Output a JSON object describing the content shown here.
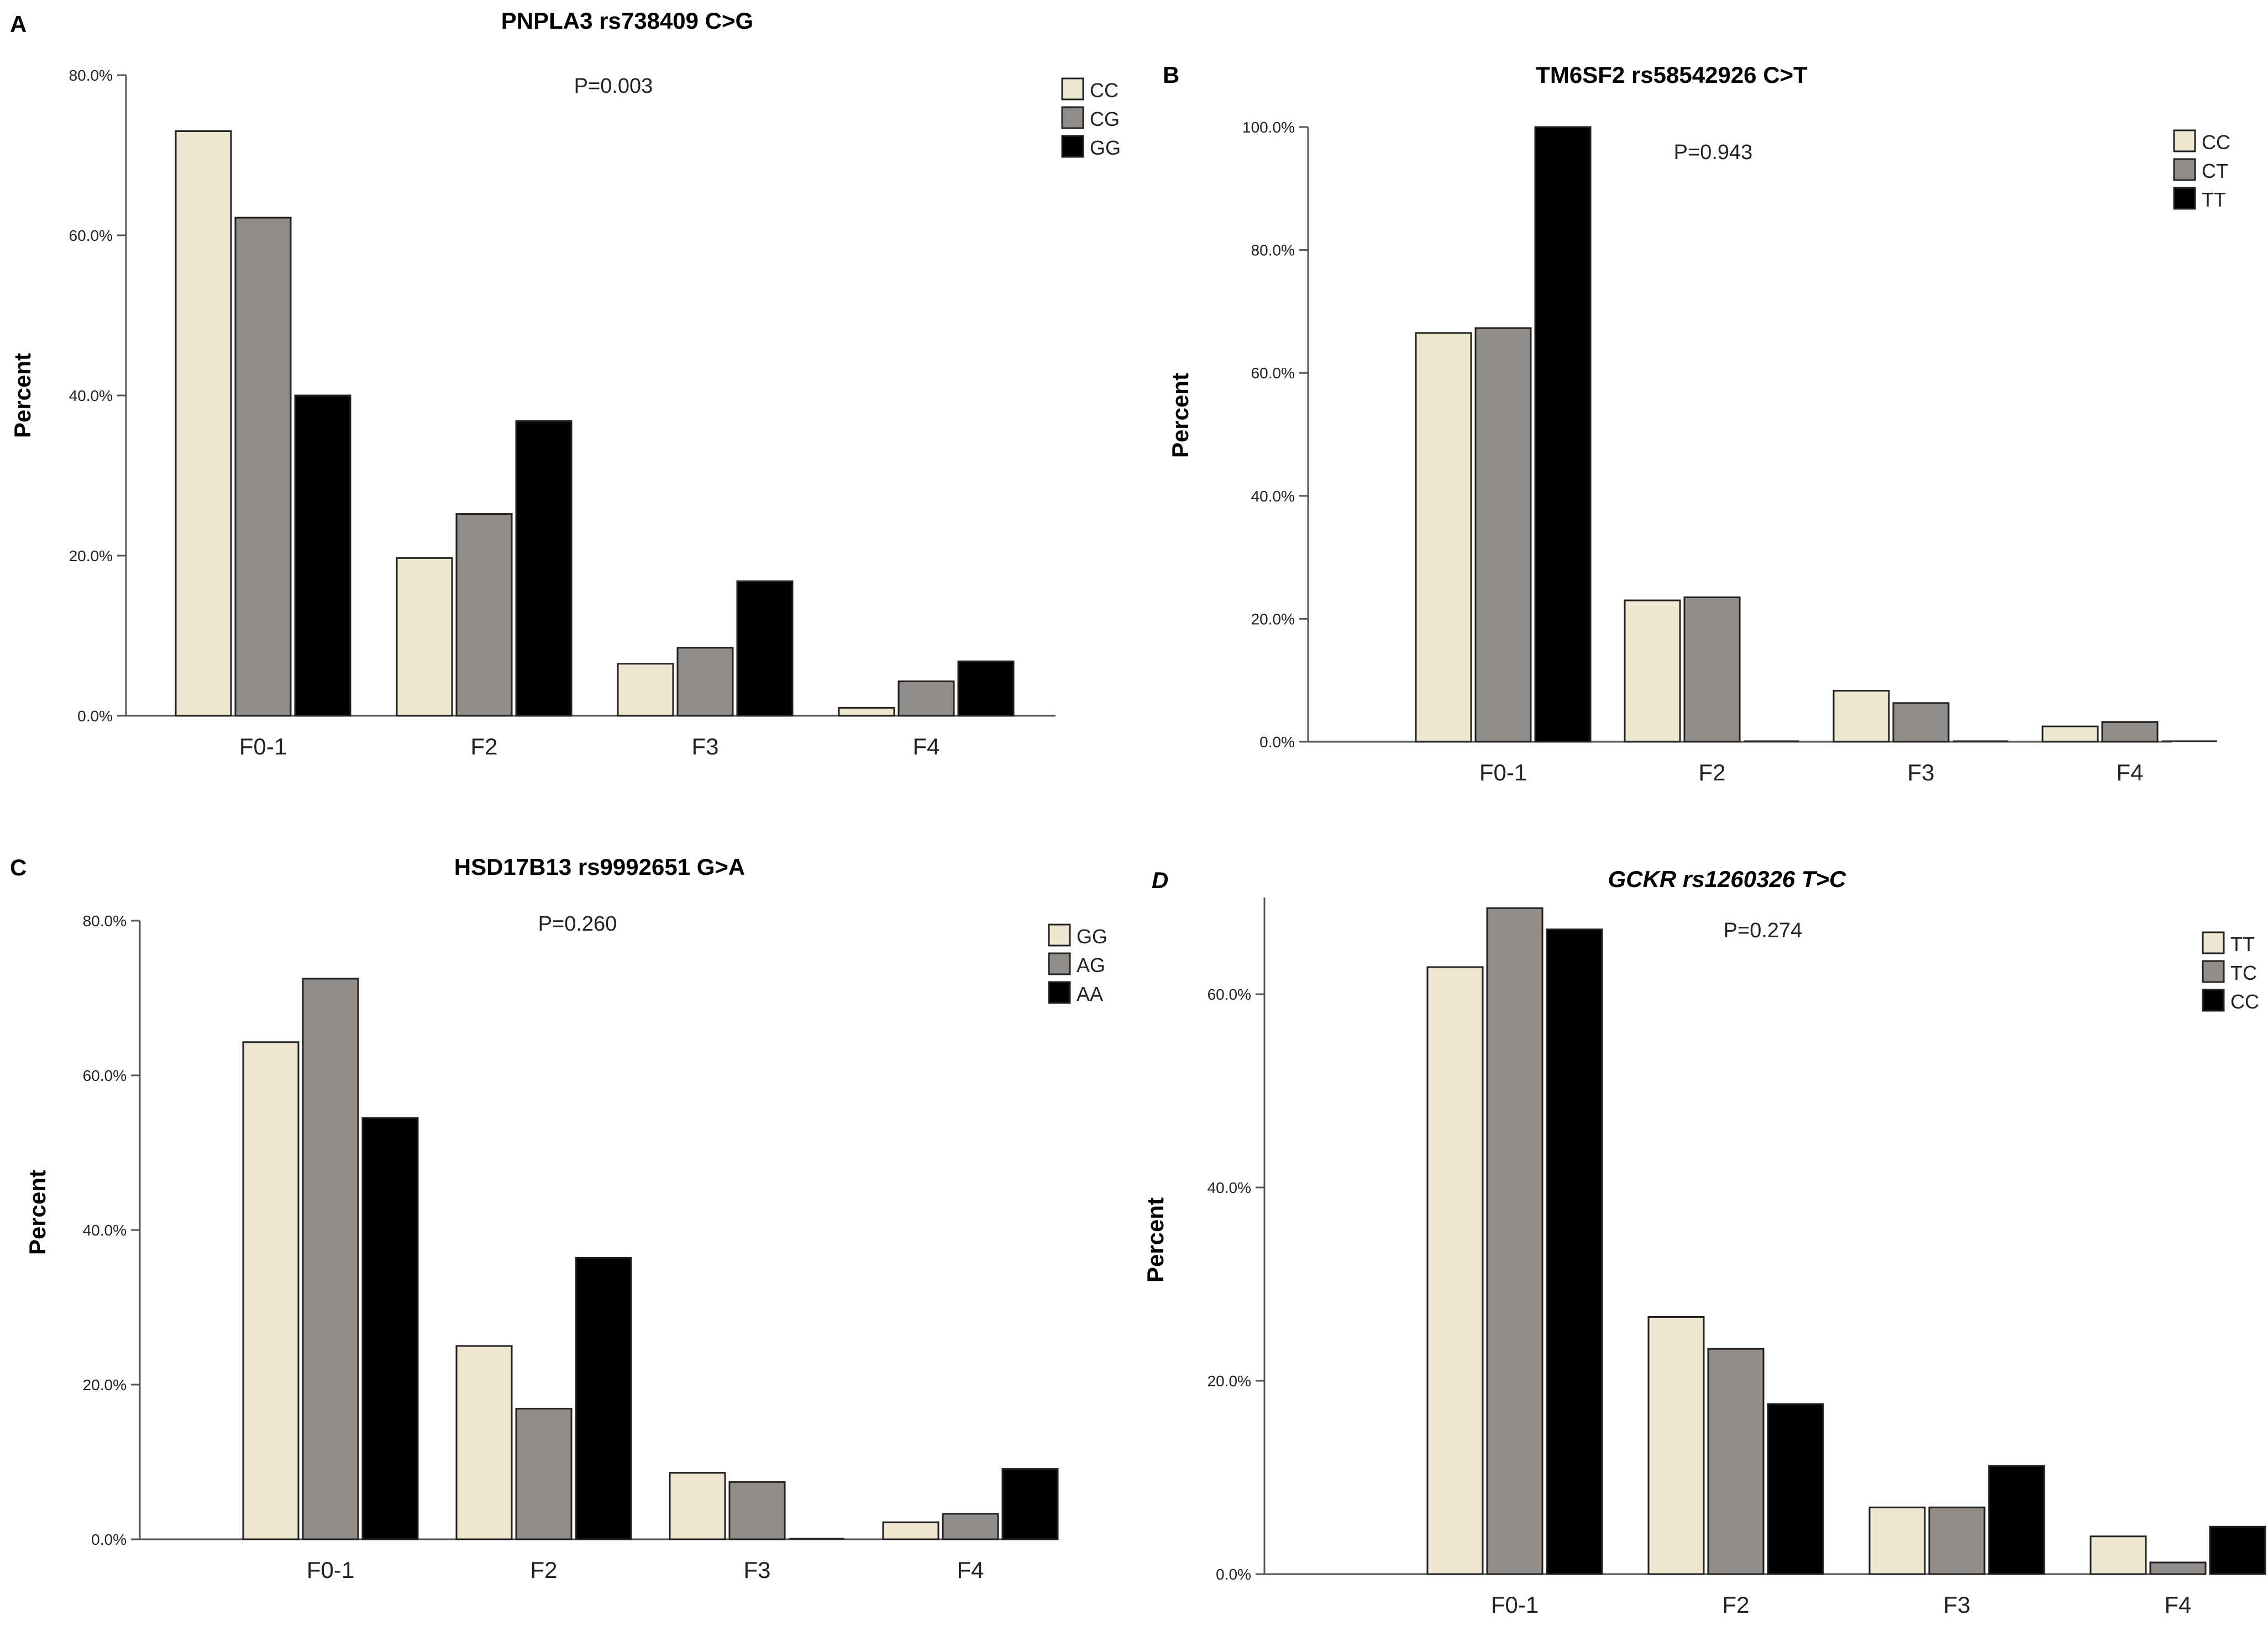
{
  "colors": {
    "light": "#efe6d2",
    "mid": "#938d89",
    "dark": "#000000",
    "axis": "#555555",
    "text": "#222222"
  },
  "chart_data": [
    {
      "panel": "A",
      "type": "bar",
      "title": "PNPLA3 rs738409 C>G",
      "title_italic": false,
      "annotation": "P=0.003",
      "xlabel": "",
      "ylabel": "Percent",
      "categories": [
        "F0-1",
        "F2",
        "F3",
        "F4"
      ],
      "ylim": [
        0,
        80
      ],
      "yticks": [
        0,
        20,
        40,
        60,
        80
      ],
      "ytick_labels": [
        "0.0%",
        "20.0%",
        "40.0%",
        "60.0%",
        "80.0%"
      ],
      "legend_position": "top-right",
      "series": [
        {
          "name": "CC",
          "color_key": "light",
          "values": [
            73.0,
            19.7,
            6.5,
            1.0
          ]
        },
        {
          "name": "CG",
          "color_key": "mid",
          "values": [
            62.2,
            25.2,
            8.5,
            4.3
          ]
        },
        {
          "name": "GG",
          "color_key": "dark",
          "values": [
            40.0,
            36.8,
            16.8,
            6.8
          ]
        }
      ]
    },
    {
      "panel": "B",
      "type": "bar",
      "title": "TM6SF2 rs58542926 C>T",
      "title_italic": false,
      "annotation": "P=0.943",
      "xlabel": "",
      "ylabel": "Percent",
      "categories": [
        "F0-1",
        "F2",
        "F3",
        "F4"
      ],
      "ylim": [
        0,
        100
      ],
      "yticks": [
        0,
        20,
        40,
        60,
        80,
        100
      ],
      "ytick_labels": [
        "0.0%",
        "20.0%",
        "40.0%",
        "60.0%",
        "80.0%",
        "100.0%"
      ],
      "legend_position": "top-right",
      "series": [
        {
          "name": "CC",
          "color_key": "light",
          "values": [
            66.5,
            23.0,
            8.3,
            2.5
          ]
        },
        {
          "name": "CT",
          "color_key": "mid",
          "values": [
            67.3,
            23.5,
            6.3,
            3.2
          ]
        },
        {
          "name": "TT",
          "color_key": "dark",
          "values": [
            100.0,
            0,
            0,
            0
          ]
        }
      ]
    },
    {
      "panel": "C",
      "type": "bar",
      "title": "HSD17B13 rs9992651 G>A",
      "title_italic": false,
      "annotation": "P=0.260",
      "xlabel": "",
      "ylabel": "Percent",
      "categories": [
        "F0-1",
        "F2",
        "F3",
        "F4"
      ],
      "ylim": [
        0,
        80
      ],
      "yticks": [
        0,
        20,
        40,
        60,
        80
      ],
      "ytick_labels": [
        "0.0%",
        "20.0%",
        "40.0%",
        "60.0%",
        "80.0%"
      ],
      "legend_position": "top-right",
      "series": [
        {
          "name": "GG",
          "color_key": "light",
          "values": [
            64.3,
            25.0,
            8.6,
            2.2
          ]
        },
        {
          "name": "AG",
          "color_key": "mid",
          "values": [
            72.5,
            16.9,
            7.4,
            3.3
          ]
        },
        {
          "name": "AA",
          "color_key": "dark",
          "values": [
            54.5,
            36.4,
            0,
            9.1
          ]
        }
      ]
    },
    {
      "panel": "D",
      "type": "bar",
      "title": "GCKR rs1260326 T>C",
      "title_italic": true,
      "annotation": "P=0.274",
      "xlabel": "",
      "ylabel": "Percent",
      "categories": [
        "F0-1",
        "F2",
        "F3",
        "F4"
      ],
      "ylim": [
        0,
        70
      ],
      "yticks": [
        0,
        20,
        40,
        60
      ],
      "ytick_labels": [
        "0.0%",
        "20.0%",
        "40.0%",
        "60.0%"
      ],
      "legend_position": "top-right",
      "series": [
        {
          "name": "TT",
          "color_key": "light",
          "values": [
            62.8,
            26.6,
            6.9,
            3.9
          ]
        },
        {
          "name": "TC",
          "color_key": "mid",
          "values": [
            68.9,
            23.3,
            6.9,
            1.2
          ]
        },
        {
          "name": "CC",
          "color_key": "dark",
          "values": [
            66.7,
            17.6,
            11.2,
            4.9
          ]
        }
      ]
    }
  ]
}
